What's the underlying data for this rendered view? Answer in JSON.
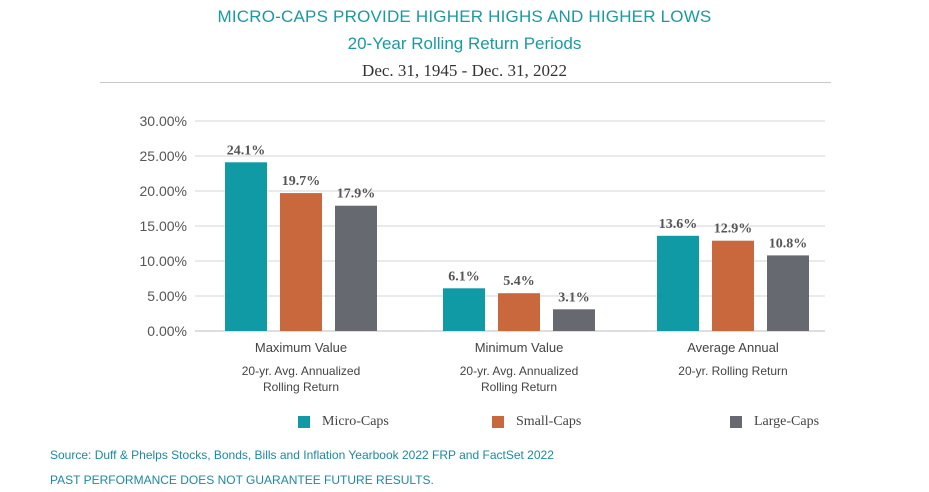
{
  "header": {
    "title": "MICRO-CAPS PROVIDE HIGHER HIGHS AND HIGHER LOWS",
    "subtitle": "20-Year Rolling Return Periods",
    "date_range": "Dec. 31, 1945 - Dec. 31, 2022"
  },
  "chart_data": {
    "type": "bar",
    "categories": [
      "Maximum Value",
      "Minimum Value",
      "Average Annual"
    ],
    "category_sublabels": [
      [
        "20-yr. Avg. Annualized",
        "Rolling Return"
      ],
      [
        "20-yr. Avg. Annualized",
        "Rolling Return"
      ],
      [
        "20-yr. Rolling Return"
      ]
    ],
    "series": [
      {
        "name": "Micro-Caps",
        "color": "#0f9aa5",
        "values": [
          24.1,
          6.1,
          13.6
        ],
        "value_labels": [
          "24.1%",
          "6.1%",
          "13.6%"
        ]
      },
      {
        "name": "Small-Caps",
        "color": "#c9673d",
        "values": [
          19.7,
          5.4,
          12.9
        ],
        "value_labels": [
          "19.7%",
          "5.4%",
          "12.9%"
        ]
      },
      {
        "name": "Large-Caps",
        "color": "#666a70",
        "values": [
          17.9,
          3.1,
          10.8
        ],
        "value_labels": [
          "17.9%",
          "3.1%",
          "10.8%"
        ]
      }
    ],
    "ylim": [
      0,
      30
    ],
    "yticks": [
      0,
      5,
      10,
      15,
      20,
      25,
      30
    ],
    "ytick_labels": [
      "0.00%",
      "5.00%",
      "10.00%",
      "15.00%",
      "20.00%",
      "25.00%",
      "30.00%"
    ],
    "grid": true,
    "legend_position": "bottom"
  },
  "footer": {
    "source": "Source: Duff & Phelps Stocks, Bonds, Bills and Inflation Yearbook 2022 FRP and FactSet 2022",
    "disclaimer": "PAST PERFORMANCE DOES NOT GUARANTEE FUTURE RESULTS."
  }
}
